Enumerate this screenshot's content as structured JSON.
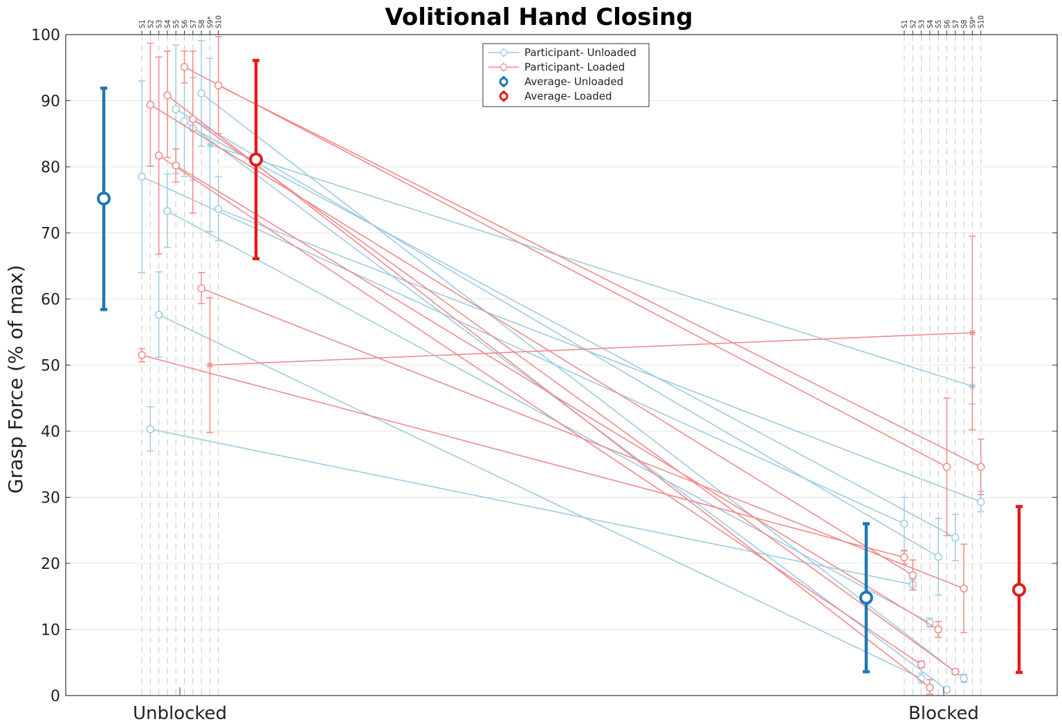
{
  "chart_data": {
    "type": "line",
    "title": "Volitional Hand Closing",
    "ylabel": "Grasp Force (% of max)",
    "xlabel": "",
    "ylim": [
      0,
      100
    ],
    "yticks": [
      0,
      10,
      20,
      30,
      40,
      50,
      60,
      70,
      80,
      90,
      100
    ],
    "categories": [
      "Unblocked",
      "Blocked"
    ],
    "subjects": [
      "S1",
      "S2",
      "S3",
      "S4",
      "S5",
      "S6",
      "S7",
      "S8",
      "S9*",
      "S10"
    ],
    "grid": "horizontal",
    "legend_position": "top-center",
    "colors": {
      "participant_unloaded": "#9ecae1",
      "participant_loaded": "#f08a8a",
      "average_unloaded": "#1f77b4",
      "average_loaded": "#e31a1c"
    },
    "legend": [
      {
        "label": "Participant- Unloaded",
        "key": "participant_unloaded",
        "style": "thin"
      },
      {
        "label": "Participant- Loaded",
        "key": "participant_loaded",
        "style": "thin"
      },
      {
        "label": "Average- Unloaded",
        "key": "average_unloaded",
        "style": "thick"
      },
      {
        "label": "Average- Loaded",
        "key": "average_loaded",
        "style": "thick"
      }
    ],
    "series": [
      {
        "name": "Participant- Unloaded",
        "condition": "unloaded",
        "subjects": [
          {
            "subject": "S1",
            "unblocked": 78.5,
            "unblocked_err": [
              64.0,
              93.0
            ],
            "blocked": 26.0,
            "blocked_err": [
              22.0,
              30.0
            ]
          },
          {
            "subject": "S2",
            "unblocked": 40.3,
            "unblocked_err": [
              37.0,
              43.7
            ],
            "blocked": 16.8,
            "blocked_err": [
              16.0,
              17.6
            ]
          },
          {
            "subject": "S3",
            "unblocked": 57.6,
            "unblocked_err": [
              51.2,
              64.1
            ],
            "blocked": 2.6,
            "blocked_err": [
              1.9,
              3.4
            ]
          },
          {
            "subject": "S4",
            "unblocked": 73.3,
            "unblocked_err": [
              67.8,
              78.9
            ],
            "blocked": 11.0,
            "blocked_err": [
              10.4,
              11.7
            ]
          },
          {
            "subject": "S5",
            "unblocked": 88.7,
            "unblocked_err": [
              79.0,
              98.4
            ],
            "blocked": 21.0,
            "blocked_err": [
              15.2,
              26.8
            ]
          },
          {
            "subject": "S6",
            "unblocked": 86.9,
            "unblocked_err": [
              78.5,
              95.3
            ],
            "blocked": 0.9,
            "blocked_err": [
              0.5,
              1.3
            ]
          },
          {
            "subject": "S7",
            "unblocked": 85.8,
            "unblocked_err": [
              78.0,
              93.5
            ],
            "blocked": 23.9,
            "blocked_err": [
              20.4,
              27.4
            ]
          },
          {
            "subject": "S8",
            "unblocked": 91.1,
            "unblocked_err": [
              83.1,
              99.1
            ],
            "blocked": 2.6,
            "blocked_err": [
              2.0,
              3.2
            ]
          },
          {
            "subject": "S9*",
            "unblocked": 83.3,
            "unblocked_err": [
              70.2,
              96.4
            ],
            "blocked": 46.8,
            "blocked_err": [
              44.1,
              49.6
            ],
            "marker": "asterisk"
          },
          {
            "subject": "S10",
            "unblocked": 73.6,
            "unblocked_err": [
              68.8,
              78.5
            ],
            "blocked": 29.3,
            "blocked_err": [
              27.8,
              30.9
            ]
          }
        ]
      },
      {
        "name": "Participant- Loaded",
        "condition": "loaded",
        "subjects": [
          {
            "subject": "S1",
            "unblocked": 51.5,
            "unblocked_err": [
              50.5,
              52.5
            ],
            "blocked": 20.9,
            "blocked_err": [
              19.9,
              21.9
            ]
          },
          {
            "subject": "S2",
            "unblocked": 89.4,
            "unblocked_err": [
              80.1,
              98.7
            ],
            "blocked": 18.2,
            "blocked_err": [
              16.0,
              20.5
            ]
          },
          {
            "subject": "S3",
            "unblocked": 81.7,
            "unblocked_err": [
              66.8,
              96.6
            ],
            "blocked": 4.7,
            "blocked_err": [
              4.2,
              5.2
            ]
          },
          {
            "subject": "S4",
            "unblocked": 90.8,
            "unblocked_err": [
              81.4,
              97.5
            ],
            "blocked": 1.2,
            "blocked_err": [
              0.2,
              2.4
            ]
          },
          {
            "subject": "S5",
            "unblocked": 80.2,
            "unblocked_err": [
              77.7,
              82.7
            ],
            "blocked": 10.0,
            "blocked_err": [
              8.8,
              11.2
            ]
          },
          {
            "subject": "S6",
            "unblocked": 95.1,
            "unblocked_err": [
              92.7,
              97.5
            ],
            "blocked": 34.6,
            "blocked_err": [
              24.2,
              45.0
            ]
          },
          {
            "subject": "S7",
            "unblocked": 87.2,
            "unblocked_err": [
              73.0,
              97.5
            ],
            "blocked": 3.6,
            "blocked_err": [
              3.2,
              4.0
            ]
          },
          {
            "subject": "S8",
            "unblocked": 61.6,
            "unblocked_err": [
              59.3,
              64.0
            ],
            "blocked": 16.2,
            "blocked_err": [
              9.5,
              22.9
            ]
          },
          {
            "subject": "S9*",
            "unblocked": 50.0,
            "unblocked_err": [
              39.8,
              60.2
            ],
            "blocked": 54.9,
            "blocked_err": [
              40.2,
              69.5
            ],
            "marker": "asterisk"
          },
          {
            "subject": "S10",
            "unblocked": 92.3,
            "unblocked_err": [
              85.0,
              99.7
            ],
            "blocked": 34.6,
            "blocked_err": [
              30.4,
              38.8
            ]
          }
        ]
      },
      {
        "name": "Average- Unloaded",
        "condition": "unloaded",
        "unblocked": 75.2,
        "unblocked_err": [
          58.4,
          91.9
        ],
        "blocked": 14.8,
        "blocked_err": [
          3.6,
          26.0
        ]
      },
      {
        "name": "Average- Loaded",
        "condition": "loaded",
        "unblocked": 81.1,
        "unblocked_err": [
          66.1,
          96.1
        ],
        "blocked": 16.0,
        "blocked_err": [
          3.5,
          28.6
        ]
      }
    ]
  }
}
